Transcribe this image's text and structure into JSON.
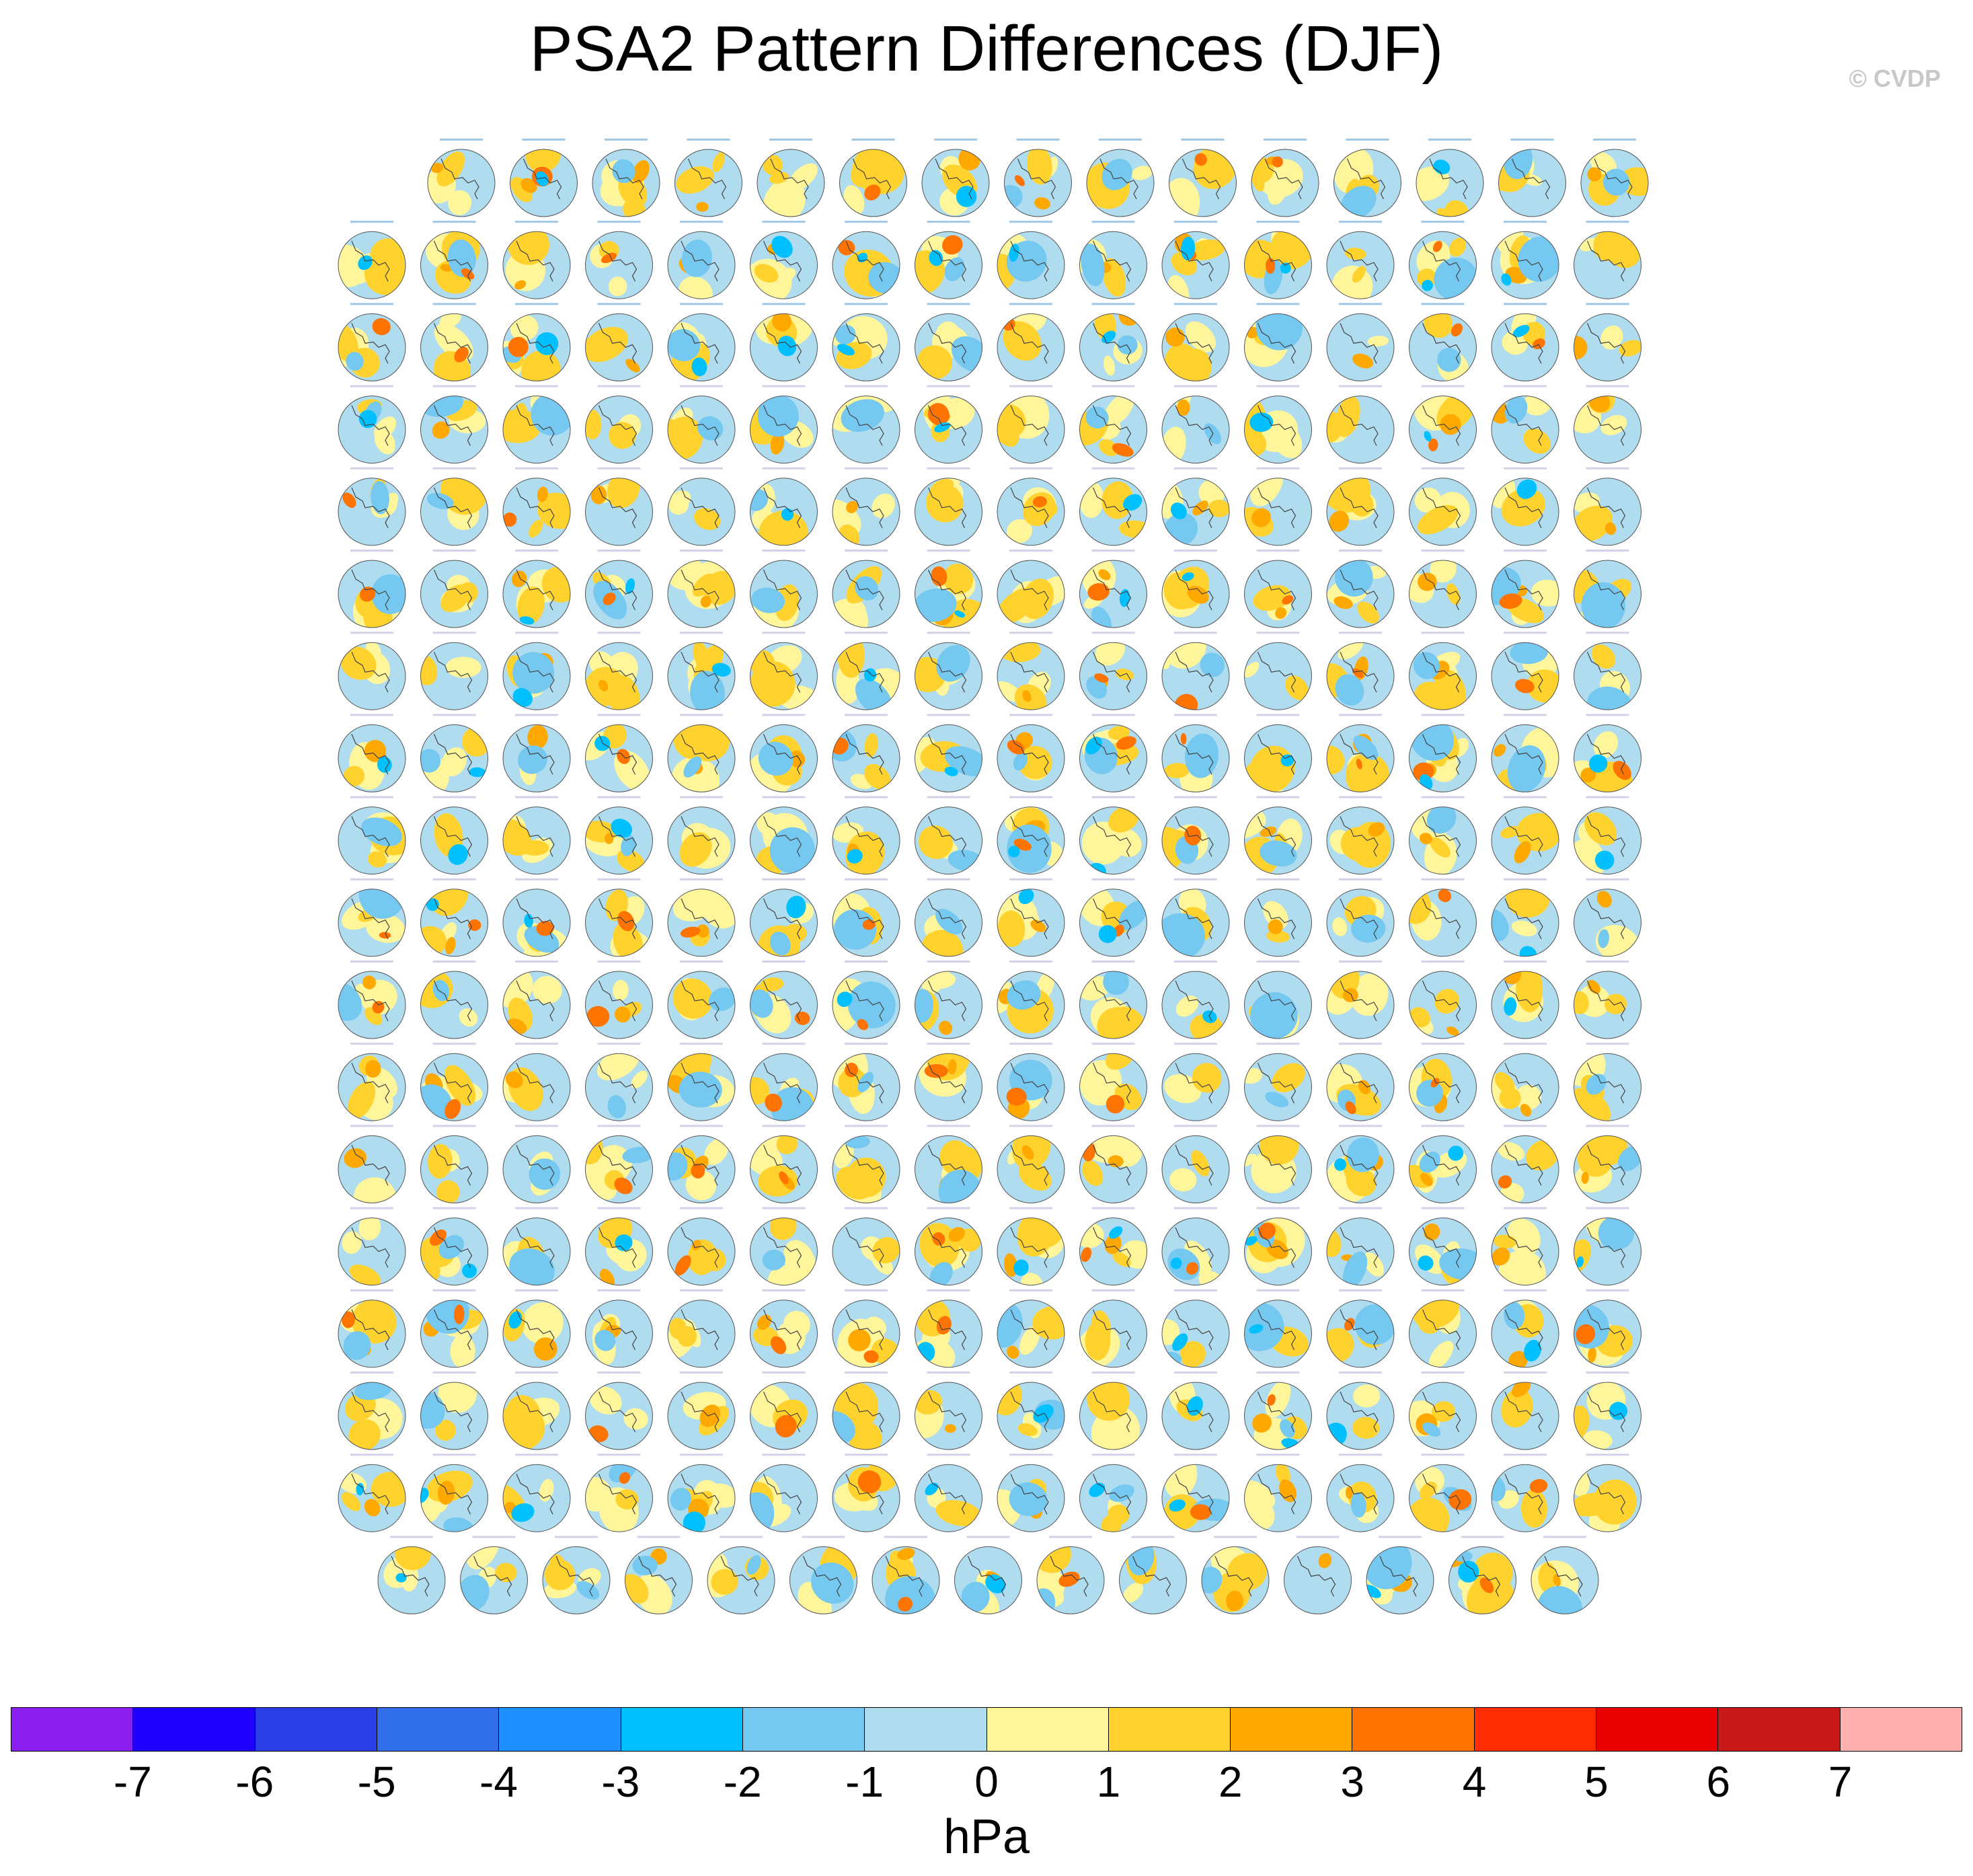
{
  "title": "PSA2 Pattern Differences (DJF)",
  "watermark": "© CVDP",
  "chart_data": {
    "type": "heatmap",
    "description_kind": "panel grid of Southern Hemisphere polar-stereographic maps",
    "grid": {
      "rows": 18,
      "row_counts": [
        15,
        16,
        16,
        16,
        16,
        16,
        16,
        16,
        16,
        16,
        16,
        16,
        16,
        16,
        16,
        16,
        16,
        15
      ]
    },
    "colorbar": {
      "levels": [
        -7,
        -6,
        -5,
        -4,
        -3,
        -2,
        -1,
        0,
        1,
        2,
        3,
        4,
        5,
        6,
        7
      ],
      "labels": [
        "-7",
        "-6",
        "-5",
        "-4",
        "-3",
        "-2",
        "-1",
        "0",
        "1",
        "2",
        "3",
        "4",
        "5",
        "6",
        "7"
      ],
      "colors": [
        "#8a1ff0",
        "#1e00ff",
        "#2b3ee6",
        "#2f6ee8",
        "#1e90ff",
        "#00c0ff",
        "#75c8f0",
        "#b0dcf0",
        "#fff59a",
        "#ffd22e",
        "#ffa800",
        "#ff7300",
        "#ff2d00",
        "#e80000",
        "#c81818",
        "#ffb0b0"
      ],
      "units": "hPa"
    }
  }
}
